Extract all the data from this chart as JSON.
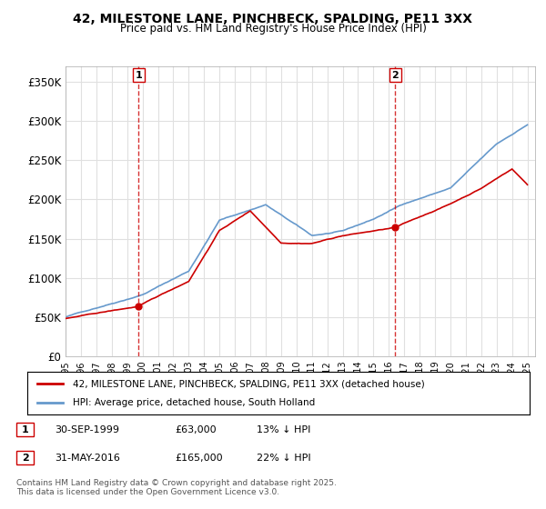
{
  "title": "42, MILESTONE LANE, PINCHBECK, SPALDING, PE11 3XX",
  "subtitle": "Price paid vs. HM Land Registry's House Price Index (HPI)",
  "ylabel": "",
  "bg_color": "#ffffff",
  "plot_bg_color": "#ffffff",
  "grid_color": "#e0e0e0",
  "line1_color": "#cc0000",
  "line2_color": "#6699cc",
  "vline_color": "#cc0000",
  "ylim": [
    0,
    370000
  ],
  "yticks": [
    0,
    50000,
    100000,
    150000,
    200000,
    250000,
    300000,
    350000
  ],
  "ytick_labels": [
    "£0",
    "£50K",
    "£100K",
    "£150K",
    "£200K",
    "£250K",
    "£300K",
    "£350K"
  ],
  "marker1_date_idx": 4.75,
  "marker1_price": 63000,
  "marker1_label": "1",
  "marker2_date_idx": 21.42,
  "marker2_price": 165000,
  "marker2_label": "2",
  "legend_line1": "42, MILESTONE LANE, PINCHBECK, SPALDING, PE11 3XX (detached house)",
  "legend_line2": "HPI: Average price, detached house, South Holland",
  "table_row1": [
    "1",
    "30-SEP-1999",
    "£63,000",
    "13% ↓ HPI"
  ],
  "table_row2": [
    "2",
    "31-MAY-2016",
    "£165,000",
    "22% ↓ HPI"
  ],
  "footnote": "Contains HM Land Registry data © Crown copyright and database right 2025.\nThis data is licensed under the Open Government Licence v3.0.",
  "xstart_year": 1995,
  "xend_year": 2025
}
